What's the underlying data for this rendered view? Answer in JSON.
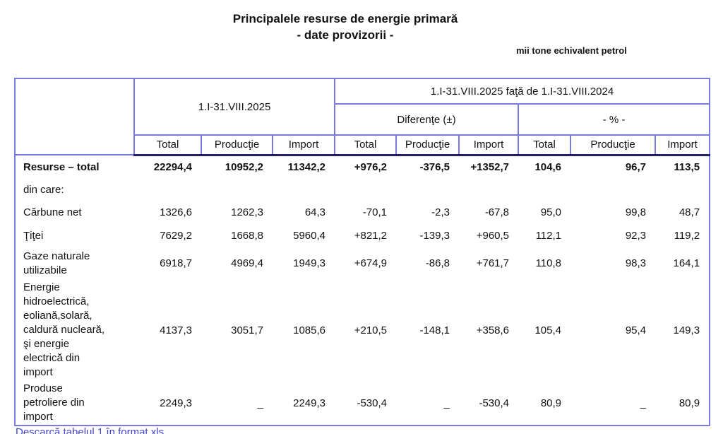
{
  "title": {
    "line1": "Principalele resurse de energie primară",
    "line2": "- date provizorii -"
  },
  "unit_note": "mii tone echivalent petrol",
  "table": {
    "header": {
      "period_current": "1.I-31.VIII.2025",
      "period_comparison": "1.I-31.VIII.2025 faţă de 1.I-31.VIII.2024",
      "diff_group_label": "Diferenţe (±)",
      "pct_group_label": "- % -",
      "sub_columns": [
        "Total",
        "Producţie",
        "Import"
      ]
    },
    "rows": [
      {
        "label": "Resurse – total",
        "bold": true,
        "values": [
          "22294,4",
          "10952,2",
          "11342,2",
          "+976,2",
          "-376,5",
          "+1352,7",
          "104,6",
          "96,7",
          "113,5"
        ]
      },
      {
        "label": "din care:",
        "bold": false,
        "values": [
          "",
          "",
          "",
          "",
          "",
          "",
          "",
          "",
          ""
        ]
      },
      {
        "label": "Cărbune net",
        "bold": false,
        "values": [
          "1326,6",
          "1262,3",
          "64,3",
          "-70,1",
          "-2,3",
          "-67,8",
          "95,0",
          "99,8",
          "48,7"
        ]
      },
      {
        "label": "Ţiţei",
        "bold": false,
        "values": [
          "7629,2",
          "1668,8",
          "5960,4",
          "+821,2",
          "-139,3",
          "+960,5",
          "112,1",
          "92,3",
          "119,2"
        ]
      },
      {
        "label": "Gaze naturale\nutilizabile",
        "bold": false,
        "values": [
          "6918,7",
          "4969,4",
          "1949,3",
          "+674,9",
          "-86,8",
          "+761,7",
          "110,8",
          "98,3",
          "164,1"
        ]
      },
      {
        "label": "Energie\nhidroelectrică,\neoliană,solară,\ncaldură nucleară,\nşi energie\nelectrică din\nimport",
        "bold": false,
        "values": [
          "4137,3",
          "3051,7",
          "1085,6",
          "+210,5",
          "-148,1",
          "+358,6",
          "105,4",
          "95,4",
          "149,3"
        ]
      },
      {
        "label": "Produse\npetroliere din\nimport",
        "bold": false,
        "values": [
          "2249,3",
          "_",
          "2249,3",
          "-530,4",
          "_",
          "-530,4",
          "80,9",
          "_",
          "80,9"
        ]
      }
    ]
  },
  "footer_link": "Descarcă tabelul 1 în format xls",
  "colors": {
    "table_border": "#7b7ae2",
    "header_separator": "#20206a",
    "link": "#4444cc"
  }
}
